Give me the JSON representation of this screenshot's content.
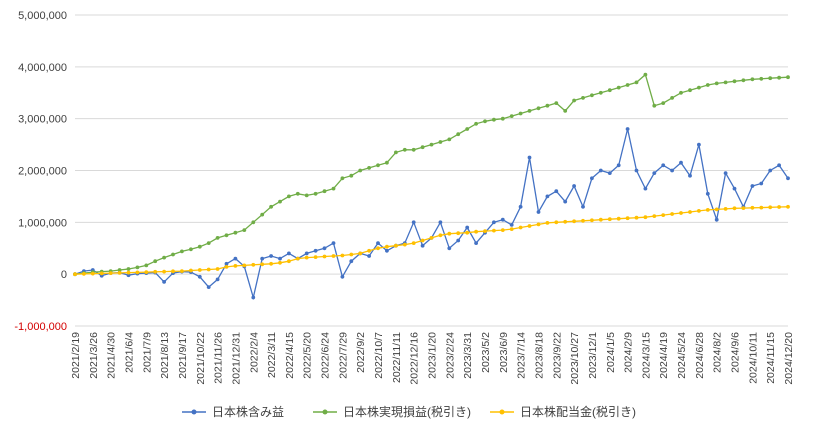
{
  "chart_data": {
    "type": "line",
    "title": "",
    "xlabel": "",
    "ylabel": "",
    "ylim": [
      -1000000,
      5000000
    ],
    "yticks": [
      -1000000,
      0,
      1000000,
      2000000,
      3000000,
      4000000,
      5000000
    ],
    "ytick_labels": [
      "-1,000,000",
      "0",
      "1,000,000",
      "2,000,000",
      "3,000,000",
      "4,000,000",
      "5,000,000"
    ],
    "negative_tick_color": "#d40000",
    "grid": true,
    "legend_position": "bottom",
    "x_tick_labels": [
      "2021/2/19",
      "2021/3/26",
      "2021/4/30",
      "2021/6/4",
      "2021/7/9",
      "2021/8/13",
      "2021/9/17",
      "2021/10/22",
      "2021/11/26",
      "2021/12/31",
      "2022/2/4",
      "2022/3/11",
      "2022/4/15",
      "2022/5/20",
      "2022/6/24",
      "2022/7/29",
      "2022/9/2",
      "2022/10/7",
      "2022/11/11",
      "2022/12/16",
      "2023/1/20",
      "2023/2/24",
      "2023/3/31",
      "2023/5/2",
      "2023/6/9",
      "2023/7/14",
      "2023/8/18",
      "2023/9/22",
      "2023/10/27",
      "2023/12/1",
      "2024/1/5",
      "2024/2/9",
      "2024/3/15",
      "2024/4/19",
      "2024/5/24",
      "2024/6/28",
      "2024/8/2",
      "2024/9/6",
      "2024/10/11",
      "2024/11/15",
      "2024/12/20"
    ],
    "x": [
      0,
      0.5,
      1,
      1.5,
      2,
      2.5,
      3,
      3.5,
      4,
      4.5,
      5,
      5.5,
      6,
      6.5,
      7,
      7.5,
      8,
      8.5,
      9,
      9.5,
      10,
      10.5,
      11,
      11.5,
      12,
      12.5,
      13,
      13.5,
      14,
      14.5,
      15,
      15.5,
      16,
      16.5,
      17,
      17.5,
      18,
      18.5,
      19,
      19.5,
      20,
      20.5,
      21,
      21.5,
      22,
      22.5,
      23,
      23.5,
      24,
      24.5,
      25,
      25.5,
      26,
      26.5,
      27,
      27.5,
      28,
      28.5,
      29,
      29.5,
      30,
      30.5,
      31,
      31.5,
      32,
      32.5,
      33,
      33.5,
      34,
      34.5,
      35,
      35.5,
      36,
      36.5,
      37,
      37.5,
      38,
      38.5,
      39,
      39.5,
      40
    ],
    "series": [
      {
        "name": "日本株含み益",
        "color": "#4472c4",
        "values": [
          0,
          60000,
          80000,
          -30000,
          20000,
          30000,
          -20000,
          10000,
          20000,
          30000,
          -150000,
          20000,
          50000,
          40000,
          -50000,
          -250000,
          -100000,
          200000,
          300000,
          150000,
          -450000,
          300000,
          350000,
          300000,
          400000,
          300000,
          400000,
          450000,
          500000,
          600000,
          -50000,
          250000,
          400000,
          350000,
          600000,
          450000,
          550000,
          600000,
          1000000,
          550000,
          700000,
          1000000,
          500000,
          650000,
          900000,
          600000,
          800000,
          1000000,
          1050000,
          950000,
          1300000,
          2250000,
          1200000,
          1500000,
          1600000,
          1400000,
          1700000,
          1300000,
          1850000,
          2000000,
          1950000,
          2100000,
          2800000,
          2000000,
          1650000,
          1950000,
          2100000,
          2000000,
          2150000,
          1900000,
          2500000,
          1550000,
          1050000,
          1950000,
          1650000,
          1300000,
          1700000,
          1750000,
          2000000,
          2100000,
          1850000
        ]
      },
      {
        "name": "日本株実現損益(税引き)",
        "color": "#70ad47",
        "values": [
          0,
          20000,
          40000,
          50000,
          60000,
          80000,
          100000,
          130000,
          170000,
          250000,
          320000,
          380000,
          440000,
          480000,
          530000,
          600000,
          700000,
          750000,
          800000,
          850000,
          1000000,
          1150000,
          1300000,
          1400000,
          1500000,
          1550000,
          1520000,
          1550000,
          1600000,
          1650000,
          1850000,
          1900000,
          2000000,
          2050000,
          2100000,
          2150000,
          2350000,
          2400000,
          2400000,
          2450000,
          2500000,
          2550000,
          2600000,
          2700000,
          2800000,
          2900000,
          2950000,
          2980000,
          3000000,
          3050000,
          3100000,
          3150000,
          3200000,
          3250000,
          3300000,
          3150000,
          3350000,
          3400000,
          3450000,
          3500000,
          3550000,
          3600000,
          3650000,
          3700000,
          3850000,
          3250000,
          3300000,
          3400000,
          3500000,
          3550000,
          3600000,
          3650000,
          3680000,
          3700000,
          3720000,
          3740000,
          3760000,
          3770000,
          3780000,
          3790000,
          3800000
        ]
      },
      {
        "name": "日本株配当金(税引き)",
        "color": "#ffc000",
        "values": [
          0,
          5000,
          10000,
          15000,
          20000,
          25000,
          30000,
          35000,
          40000,
          45000,
          50000,
          55000,
          60000,
          70000,
          80000,
          90000,
          100000,
          140000,
          160000,
          170000,
          180000,
          190000,
          200000,
          220000,
          250000,
          300000,
          320000,
          330000,
          340000,
          350000,
          360000,
          380000,
          400000,
          450000,
          500000,
          530000,
          550000,
          570000,
          600000,
          650000,
          700000,
          750000,
          780000,
          790000,
          800000,
          820000,
          830000,
          840000,
          850000,
          870000,
          900000,
          930000,
          960000,
          990000,
          1000000,
          1010000,
          1020000,
          1030000,
          1040000,
          1050000,
          1060000,
          1070000,
          1080000,
          1090000,
          1100000,
          1120000,
          1140000,
          1160000,
          1180000,
          1200000,
          1220000,
          1240000,
          1250000,
          1260000,
          1270000,
          1275000,
          1280000,
          1285000,
          1290000,
          1295000,
          1300000
        ]
      }
    ]
  }
}
